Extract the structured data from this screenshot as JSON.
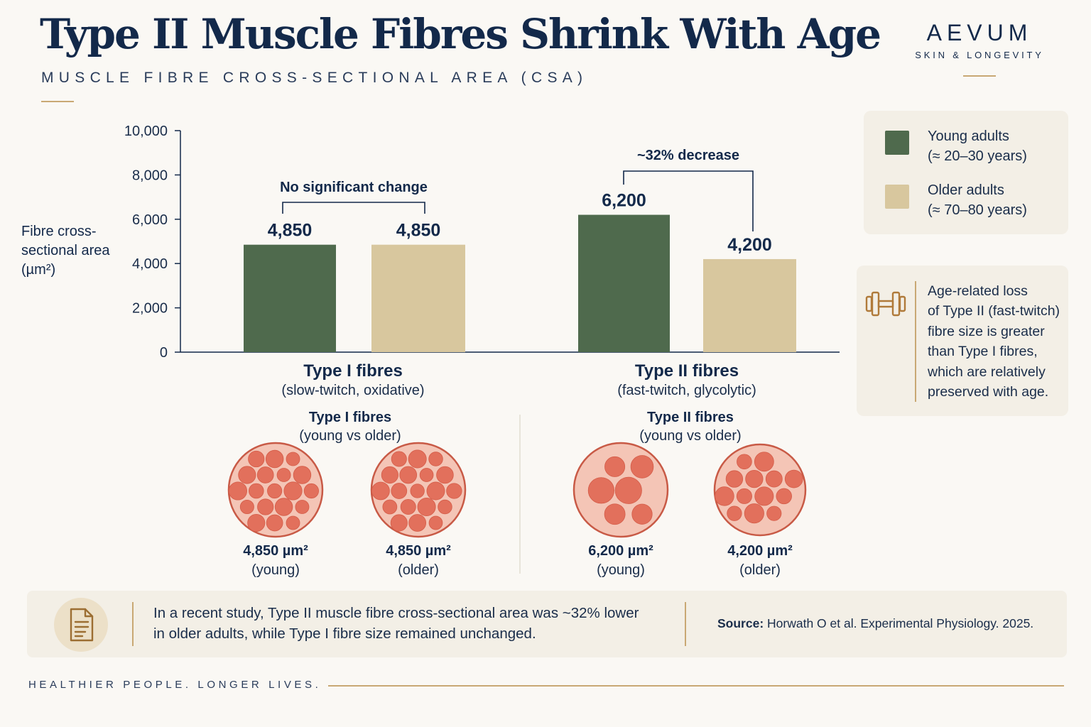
{
  "header": {
    "title": "Type II Muscle Fibres Shrink With Age",
    "subtitle": "MUSCLE FIBRE CROSS-SECTIONAL AREA (CSA)"
  },
  "brand": {
    "name": "AEVUM",
    "tagline": "SKIN & LONGEVITY"
  },
  "colors": {
    "young": "#4f6a4d",
    "older": "#d8c79e",
    "navy": "#13294a",
    "gold": "#c9a874",
    "fibre": "#e2705c"
  },
  "chart_data": {
    "type": "bar",
    "ylabel": [
      "Fibre cross-",
      "sectional area",
      "(µm²)"
    ],
    "ylim": [
      0,
      10000
    ],
    "yticks": [
      0,
      2000,
      4000,
      6000,
      8000,
      10000
    ],
    "ytick_labels": [
      "0",
      "2,000",
      "4,000",
      "6,000",
      "8,000",
      "10,000"
    ],
    "categories": [
      {
        "name": "Type I fibres",
        "desc": "(slow-twitch, oxidative)"
      },
      {
        "name": "Type II fibres",
        "desc": "(fast-twitch, glycolytic)"
      }
    ],
    "series": [
      {
        "name": "Young adults",
        "values": [
          4850,
          6200
        ],
        "labels": [
          "4,850",
          "6,200"
        ]
      },
      {
        "name": "Older adults",
        "values": [
          4850,
          4200
        ],
        "labels": [
          "4,850",
          "4,200"
        ]
      }
    ],
    "annotations": [
      "No significant change",
      "~32% decrease"
    ],
    "legend": "right"
  },
  "legend": {
    "items": [
      {
        "line1": "Young adults",
        "line2": "(≈ 20–30 years)"
      },
      {
        "line1": "Older adults",
        "line2": "(≈ 70–80 years)"
      }
    ]
  },
  "side_note": {
    "lines": [
      "Age-related loss",
      "of Type II (fast-twitch)",
      "fibre size is greater",
      "than Type I fibres,",
      "which are relatively",
      "preserved with age."
    ]
  },
  "illustrations": {
    "groups": [
      {
        "title": "Type I fibres",
        "subtitle": "(young vs older)"
      },
      {
        "title": "Type II fibres",
        "subtitle": "(young vs older)"
      }
    ],
    "items": [
      {
        "value": "4,850 µm²",
        "age": "(young)"
      },
      {
        "value": "4,850 µm²",
        "age": "(older)"
      },
      {
        "value": "6,200 µm²",
        "age": "(young)"
      },
      {
        "value": "4,200 µm²",
        "age": "(older)"
      }
    ]
  },
  "footer": {
    "line1": "In a recent study, Type II muscle fibre cross-sectional area was ~32% lower",
    "line2": "in older adults, while Type I fibre size remained unchanged.",
    "source_label": "Source:",
    "source_text": " Horwath O et al. Experimental Physiology. 2025."
  },
  "tagline": "HEALTHIER PEOPLE. LONGER LIVES."
}
